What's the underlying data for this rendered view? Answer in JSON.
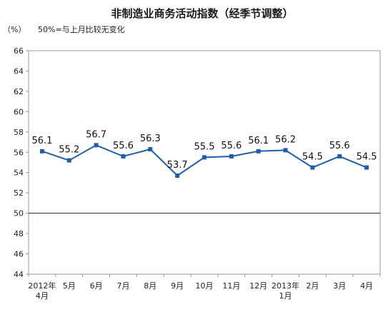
{
  "chart_data": {
    "type": "line",
    "title": "非制造业商务活动指数（经季节调整）",
    "ylabel": "（%）",
    "note": "50%=与上月比较无变化",
    "ylim": [
      44,
      66
    ],
    "yticks": [
      44,
      46,
      48,
      50,
      52,
      54,
      56,
      58,
      60,
      62,
      64,
      66
    ],
    "reference_line": 50,
    "grid": false,
    "line_color": "#1f5fa8",
    "categories": [
      [
        "2012年",
        "4月"
      ],
      [
        "5月"
      ],
      [
        "6月"
      ],
      [
        "7月"
      ],
      [
        "8月"
      ],
      [
        "9月"
      ],
      [
        "10月"
      ],
      [
        "11月"
      ],
      [
        "12月"
      ],
      [
        "2013年",
        "1月"
      ],
      [
        "2月"
      ],
      [
        "3月"
      ],
      [
        "4月"
      ]
    ],
    "values": [
      56.1,
      55.2,
      56.7,
      55.6,
      56.3,
      53.7,
      55.5,
      55.6,
      56.1,
      56.2,
      54.5,
      55.6,
      54.5
    ]
  }
}
